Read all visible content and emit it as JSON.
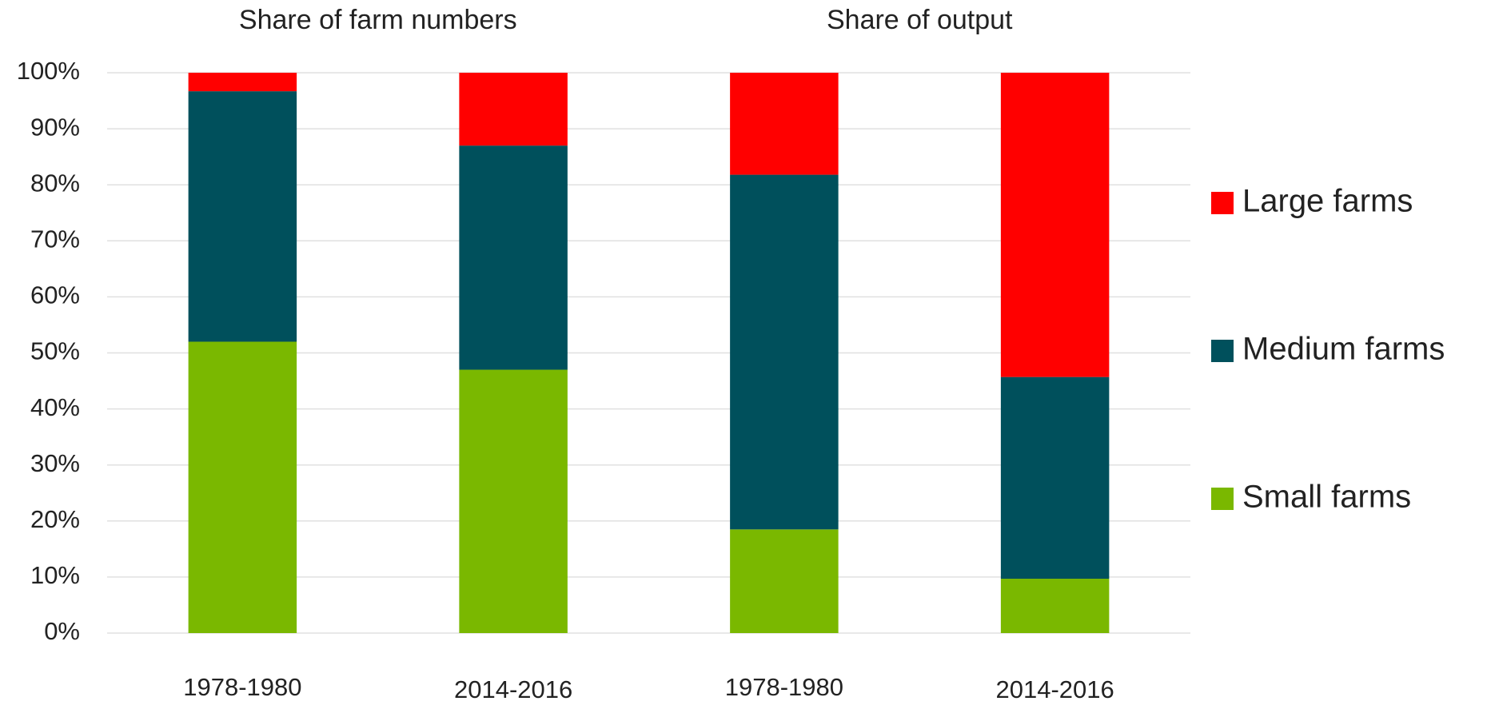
{
  "chart_data": {
    "type": "stacked_bar",
    "subtitles": [
      "Share of farm numbers",
      "Share of output"
    ],
    "categories": [
      "1978-1980",
      "2014-2016",
      "1978-1980",
      "2014-2016"
    ],
    "series": [
      {
        "name": "Small farms",
        "color": "#7ab800",
        "values": [
          52,
          47,
          18.5,
          9.7
        ]
      },
      {
        "name": "Medium farms",
        "color": "#00505c",
        "values": [
          44.7,
          40,
          63.3,
          36
        ]
      },
      {
        "name": "Large farms",
        "color": "#ff0000",
        "values": [
          3.3,
          13,
          18.2,
          54.3
        ]
      }
    ],
    "ylim": [
      0,
      100
    ],
    "yticks": [
      {
        "value": 0,
        "label": "0%"
      },
      {
        "value": 10,
        "label": "10%"
      },
      {
        "value": 20,
        "label": "20%"
      },
      {
        "value": 30,
        "label": "30%"
      },
      {
        "value": 40,
        "label": "40%"
      },
      {
        "value": 50,
        "label": "50%"
      },
      {
        "value": 60,
        "label": "60%"
      },
      {
        "value": 70,
        "label": "70%"
      },
      {
        "value": 80,
        "label": "80%"
      },
      {
        "value": 90,
        "label": "90%"
      },
      {
        "value": 100,
        "label": "100%"
      }
    ],
    "grid": true,
    "legend": "right"
  }
}
